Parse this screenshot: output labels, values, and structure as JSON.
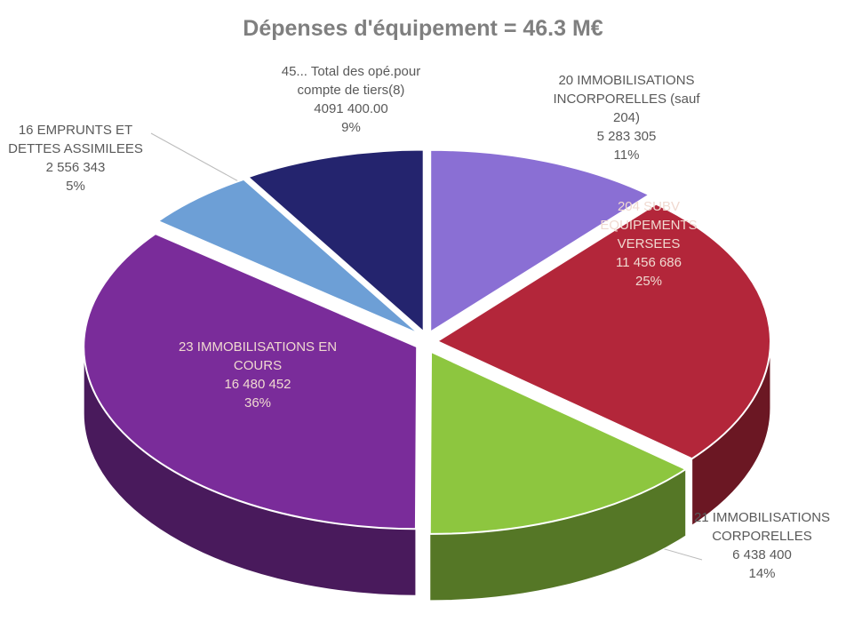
{
  "chart_data": {
    "type": "pie",
    "title": "Dépenses d'équipement = 46.3 M€",
    "categories": [
      "20 IMMOBILISATIONS INCORPORELLES (sauf 204)",
      "204 SUBV EQUIPEMENTS VERSEES",
      "21 IMMOBILISATIONS CORPORELLES",
      "23 IMMOBILISATIONS EN COURS",
      "16 EMPRUNTS ET DETTES ASSIMILEES",
      "45... Total des opé.pour compte de tiers(8)"
    ],
    "values": [
      5283305,
      11456686,
      6438400,
      16480452,
      2556343,
      4091400
    ],
    "value_labels": [
      "5 283 305",
      "11 456 686",
      "6 438 400",
      "16 480 452",
      "2 556 343",
      "4091 400.00"
    ],
    "percentages": [
      11,
      25,
      14,
      36,
      5,
      9
    ],
    "percentage_labels": [
      "11%",
      "25%",
      "14%",
      "36%",
      "5%",
      "9%"
    ],
    "colors": [
      "#8a6fd4",
      "#b3263a",
      "#8dc63f",
      "#7a2c9a",
      "#6d9fd6",
      "#24246e"
    ]
  }
}
